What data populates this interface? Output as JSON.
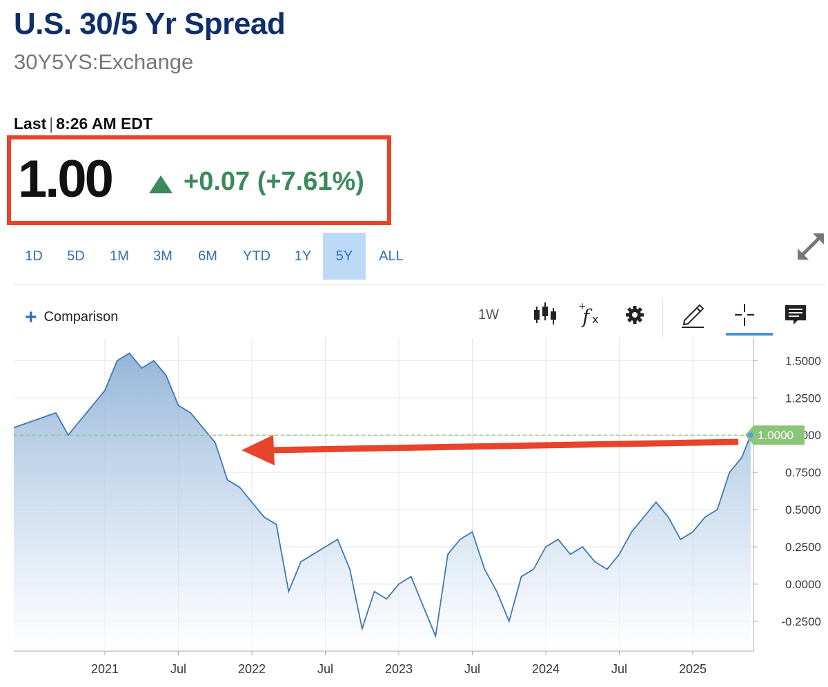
{
  "header": {
    "title": "U.S. 30/5 Yr Spread",
    "ticker": "30Y5YS:Exchange",
    "last_label": "Last",
    "last_time": "8:26 AM EDT",
    "price": "1.00",
    "change": "+0.07 (+7.61%)"
  },
  "ranges": [
    {
      "label": "1D"
    },
    {
      "label": "5D"
    },
    {
      "label": "1M"
    },
    {
      "label": "3M"
    },
    {
      "label": "6M"
    },
    {
      "label": "YTD"
    },
    {
      "label": "1Y"
    },
    {
      "label": "5Y",
      "active": true
    },
    {
      "label": "ALL"
    }
  ],
  "toolbar": {
    "comparison_label": "Comparison",
    "interval": "1W",
    "icons": [
      "candlestick-icon",
      "function-icon",
      "gear-icon",
      "pencil-icon",
      "crosshair-icon",
      "comment-icon",
      "expand-icon"
    ]
  },
  "colors": {
    "title": "#0f2f6b",
    "up": "#3b8a5b",
    "line": "#3d78b5",
    "highlight": "#e8432b",
    "last_tag": "#8cc47a"
  },
  "chart_data": {
    "type": "area",
    "x_ticks": [
      "2021",
      "Jul",
      "2022",
      "Jul",
      "2023",
      "Jul",
      "2024",
      "Jul",
      "2025"
    ],
    "y_ticks": [
      "1.5000",
      "1.2500",
      "1.0000",
      "0.7500",
      "0.5000",
      "0.2500",
      "0.0000",
      "-0.2500"
    ],
    "ylim": [
      -0.45,
      1.65
    ],
    "last_value_label": "1.0000",
    "series": [
      {
        "x": [
          "2020-08",
          "2020-09",
          "2020-10",
          "2020-11",
          "2020-12",
          "2021-01",
          "2021-02",
          "2021-03",
          "2021-04",
          "2021-05",
          "2021-06",
          "2021-07",
          "2021-08",
          "2021-09",
          "2021-10",
          "2021-11",
          "2021-12",
          "2022-01",
          "2022-02",
          "2022-03",
          "2022-04",
          "2022-05",
          "2022-06",
          "2022-07",
          "2022-08",
          "2022-09",
          "2022-10",
          "2022-11",
          "2022-12",
          "2023-01",
          "2023-02",
          "2023-03",
          "2023-04",
          "2023-05",
          "2023-06",
          "2023-07",
          "2023-08",
          "2023-09",
          "2023-10",
          "2023-11",
          "2023-12",
          "2024-01",
          "2024-02",
          "2024-03",
          "2024-04",
          "2024-05",
          "2024-06",
          "2024-07",
          "2024-08",
          "2024-09",
          "2024-10",
          "2024-11",
          "2024-12",
          "2025-01",
          "2025-02",
          "2025-03",
          "2025-04",
          "2025-05",
          "2025-06"
        ],
        "y": [
          1.05,
          1.15,
          1.0,
          1.1,
          1.2,
          1.3,
          1.5,
          1.55,
          1.45,
          1.5,
          1.4,
          1.2,
          1.15,
          1.05,
          0.95,
          0.7,
          0.65,
          0.55,
          0.45,
          0.4,
          -0.05,
          0.15,
          0.2,
          0.25,
          0.3,
          0.1,
          -0.3,
          -0.05,
          -0.1,
          0.0,
          0.05,
          -0.15,
          -0.35,
          0.2,
          0.3,
          0.35,
          0.1,
          -0.05,
          -0.25,
          0.05,
          0.1,
          0.25,
          0.3,
          0.2,
          0.25,
          0.15,
          0.1,
          0.2,
          0.35,
          0.45,
          0.55,
          0.45,
          0.3,
          0.35,
          0.45,
          0.5,
          0.75,
          0.85,
          1.0
        ]
      }
    ]
  }
}
